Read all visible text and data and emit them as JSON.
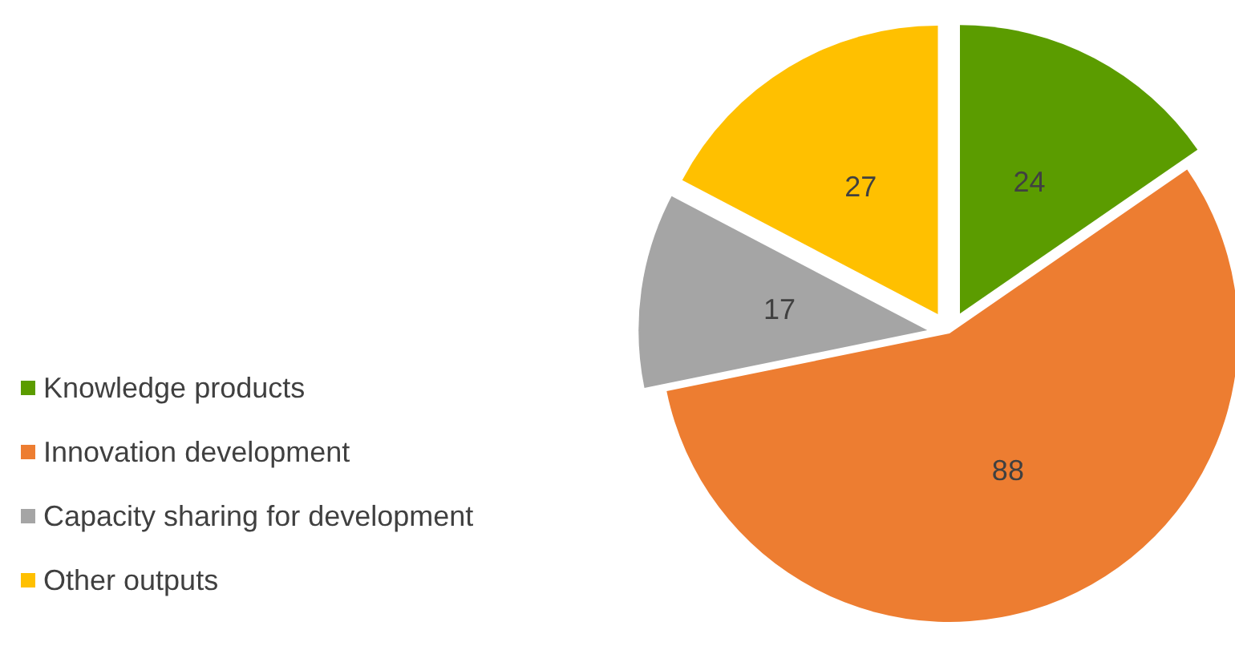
{
  "chart_data": {
    "type": "pie",
    "categories": [
      "Knowledge products",
      "Innovation development",
      "Capacity sharing for development",
      "Other outputs"
    ],
    "values": [
      24,
      88,
      17,
      27
    ],
    "colors": [
      "#5b9c00",
      "#ed7d31",
      "#a5a5a5",
      "#ffc000"
    ],
    "data_labels": true,
    "legend": "left"
  }
}
